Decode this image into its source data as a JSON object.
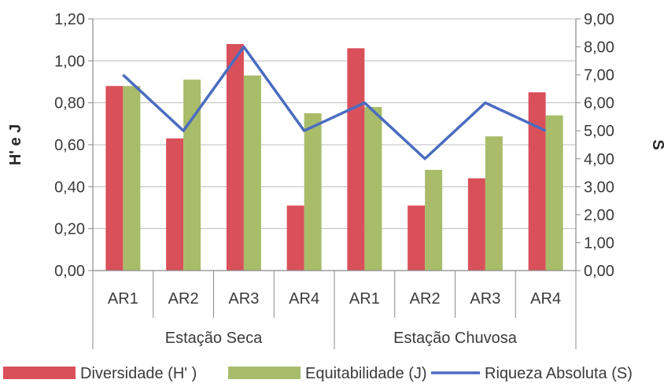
{
  "chart_data": {
    "type": "bar",
    "categories": [
      "AR1",
      "AR2",
      "AR3",
      "AR4",
      "AR1",
      "AR2",
      "AR3",
      "AR4"
    ],
    "groups": [
      {
        "label": "Estação Seca",
        "count": 4
      },
      {
        "label": "Estação Chuvosa",
        "count": 4
      }
    ],
    "series": [
      {
        "name": "Diversidade (H' )",
        "type": "bar",
        "axis": "left",
        "color": "#d9505a",
        "values": [
          0.88,
          0.63,
          1.08,
          0.31,
          1.06,
          0.31,
          0.44,
          0.85
        ]
      },
      {
        "name": "Equitabilidade (J)",
        "type": "bar",
        "axis": "left",
        "color": "#a8bc6a",
        "values": [
          0.88,
          0.91,
          0.93,
          0.75,
          0.78,
          0.48,
          0.64,
          0.74
        ]
      },
      {
        "name": "Riqueza Absoluta (S)",
        "type": "line",
        "axis": "right",
        "color": "#4a6cc0",
        "values": [
          7,
          5,
          8,
          5,
          6,
          4,
          6,
          5
        ]
      }
    ],
    "ylabel": "H' e J",
    "y2label": "S",
    "ylim": [
      0,
      1.2
    ],
    "y2lim": [
      0,
      9
    ],
    "yticks": [
      "0,00",
      "0,20",
      "0,40",
      "0,60",
      "0,80",
      "1,00",
      "1,20"
    ],
    "y2ticks": [
      "0,00",
      "1,00",
      "2,00",
      "3,00",
      "4,00",
      "5,00",
      "6,00",
      "7,00",
      "8,00",
      "9,00"
    ],
    "grid": true,
    "legend": "bottom"
  }
}
